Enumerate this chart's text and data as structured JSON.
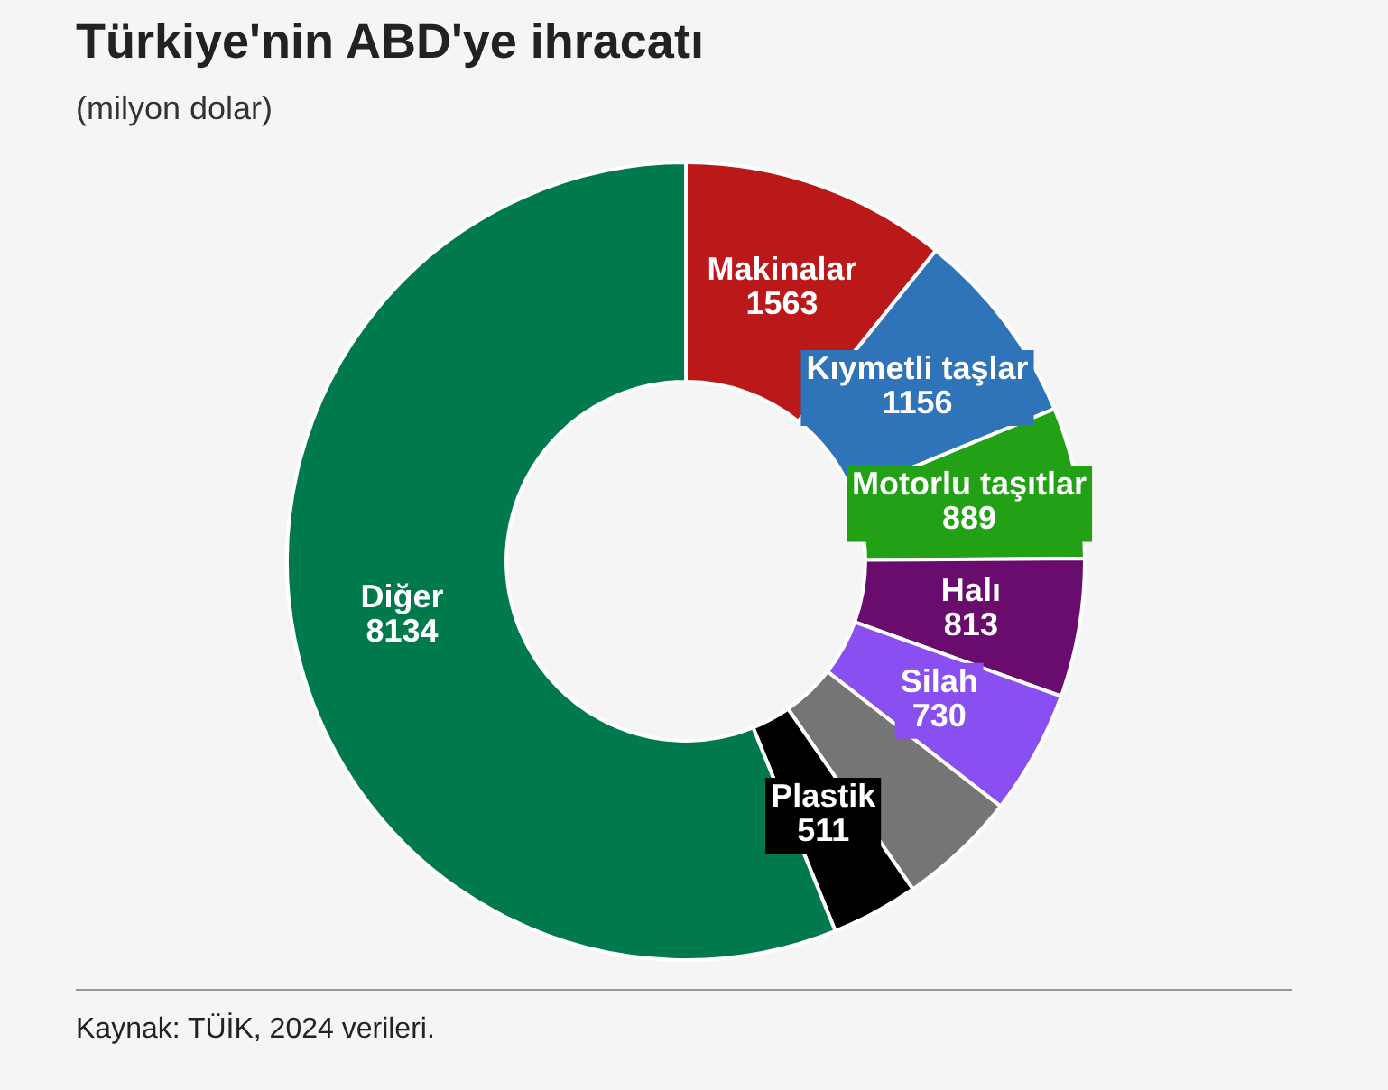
{
  "chart_data": {
    "type": "donut",
    "title": "Türkiye'nin ABD'ye ihracatı",
    "subtitle": "(milyon dolar)",
    "categories": [
      "Makinalar",
      "Kıymetli taşlar",
      "Motorlu taşıtlar",
      "Halı",
      "Silah",
      null,
      "Plastik",
      "Diğer"
    ],
    "values": [
      1563,
      1156,
      889,
      813,
      730,
      700,
      511,
      8134
    ],
    "colors": [
      "#bb1919",
      "#2f73b8",
      "#22a116",
      "#6a0c6e",
      "#8a4ff0",
      "#757575",
      "#000000",
      "#007a4d"
    ],
    "value_labels": [
      "1563",
      "1156",
      "889",
      "813",
      "730",
      null,
      "511",
      "8134"
    ],
    "legend": false,
    "annotations": [
      "Kaynak: TÜİK, 2024 verileri."
    ]
  }
}
